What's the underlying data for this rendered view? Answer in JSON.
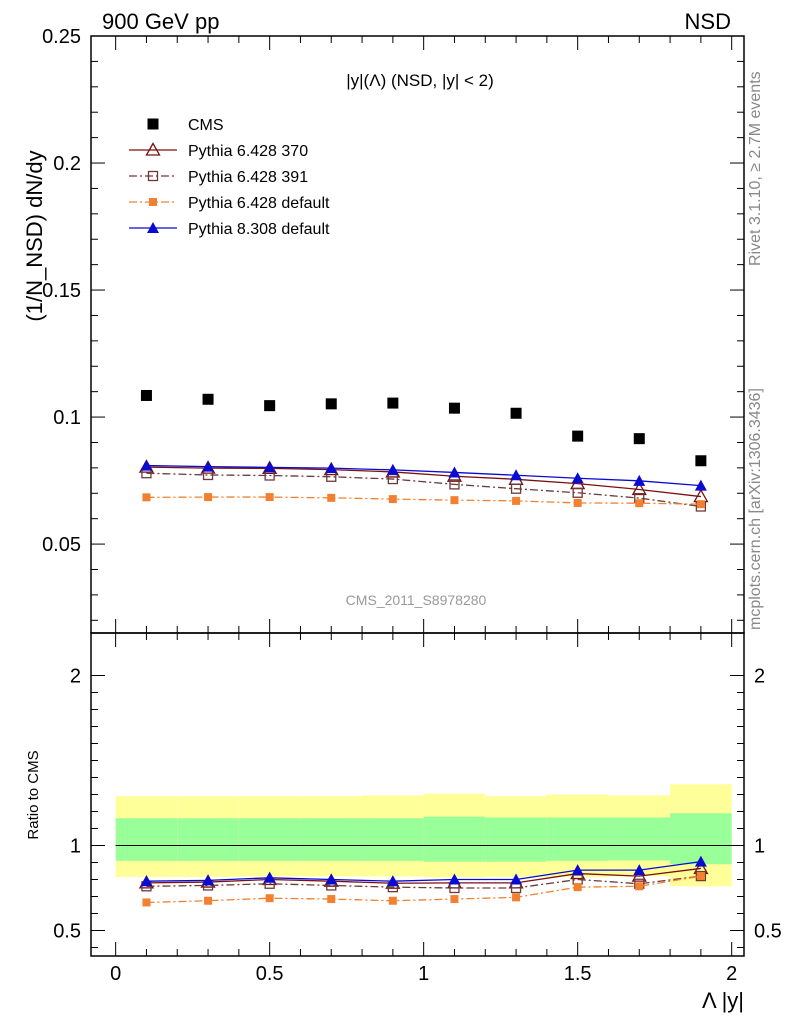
{
  "header": {
    "left": "900 GeV pp",
    "right": "NSD"
  },
  "side_labels": {
    "rivet": "Rivet 3.1.10, ≥ 2.7M events",
    "mcplots": "mcplots.cern.ch [arXiv:1306.3436]"
  },
  "watermark": "CMS_2011_S8978280",
  "colors": {
    "cms": "#000000",
    "p370": "#7a1010",
    "p391": "#6b3a3a",
    "p6def": "#f28030",
    "p8def": "#0a0ad0",
    "band_outer": "#ffff99",
    "band_inner": "#99ff99"
  },
  "chart_data": [
    {
      "type": "scatter",
      "title": "|y|(Λ) (NSD, |y| < 2)",
      "ylabel": "(1/N_NSD) dN/dy",
      "xlabel": "",
      "xlim": [
        -0.08,
        2.04
      ],
      "ylim": [
        0.015,
        0.25
      ],
      "yticks": [
        "0.05",
        "0.1",
        "0.15",
        "0.2",
        "0.25"
      ],
      "legend_position": "top-left",
      "x": [
        0.1,
        0.3,
        0.5,
        0.7,
        0.9,
        1.1,
        1.3,
        1.5,
        1.7,
        1.9
      ],
      "series": [
        {
          "name": "CMS",
          "color_key": "cms",
          "marker": "square",
          "line": "none",
          "values": [
            0.1085,
            0.107,
            0.1045,
            0.1052,
            0.1055,
            0.1035,
            0.1015,
            0.0925,
            0.0915,
            0.0828
          ]
        },
        {
          "name": "Pythia 6.428 370",
          "color_key": "p370",
          "marker": "open-triangle",
          "line": "solid",
          "values": [
            0.0803,
            0.0799,
            0.0798,
            0.0793,
            0.0784,
            0.0767,
            0.0755,
            0.0738,
            0.0715,
            0.0687
          ]
        },
        {
          "name": "Pythia 6.428 391",
          "color_key": "p391",
          "marker": "open-square",
          "line": "dashdot",
          "values": [
            0.0779,
            0.0772,
            0.077,
            0.0765,
            0.0756,
            0.0735,
            0.0718,
            0.0702,
            0.0681,
            0.0648
          ]
        },
        {
          "name": "Pythia 6.428 default",
          "color_key": "p6def",
          "marker": "small-square",
          "line": "dashdot",
          "values": [
            0.0684,
            0.0685,
            0.0685,
            0.0682,
            0.0677,
            0.0673,
            0.067,
            0.0662,
            0.0661,
            0.0657
          ]
        },
        {
          "name": "Pythia 8.308 default",
          "color_key": "p8def",
          "marker": "triangle",
          "line": "solid",
          "values": [
            0.0809,
            0.0805,
            0.0802,
            0.0799,
            0.0792,
            0.0782,
            0.0771,
            0.0759,
            0.0749,
            0.073
          ]
        }
      ]
    },
    {
      "type": "line",
      "ylabel": "Ratio to CMS",
      "xlabel": "Λ |y|",
      "xlim": [
        -0.08,
        2.04
      ],
      "ylim": [
        0.35,
        2.25
      ],
      "xticks": [
        "0",
        "0.5",
        "1",
        "1.5",
        "2"
      ],
      "yticks": [
        "0.5",
        "1",
        "2"
      ],
      "reference_line": 1,
      "bins": [
        [
          0.0,
          0.2
        ],
        [
          0.2,
          0.4
        ],
        [
          0.4,
          0.6
        ],
        [
          0.6,
          0.8
        ],
        [
          0.8,
          1.0
        ],
        [
          1.0,
          1.2
        ],
        [
          1.2,
          1.4
        ],
        [
          1.4,
          1.6
        ],
        [
          1.6,
          1.8
        ],
        [
          1.8,
          2.0
        ]
      ],
      "band_outer": {
        "low": [
          0.815,
          0.815,
          0.818,
          0.818,
          0.818,
          0.812,
          0.815,
          0.815,
          0.818,
          0.76
        ],
        "high": [
          1.29,
          1.29,
          1.29,
          1.29,
          1.295,
          1.305,
          1.29,
          1.3,
          1.295,
          1.36
        ]
      },
      "band_inner": {
        "low": [
          0.91,
          0.91,
          0.91,
          0.91,
          0.91,
          0.905,
          0.905,
          0.91,
          0.912,
          0.89
        ],
        "high": [
          1.16,
          1.16,
          1.16,
          1.16,
          1.16,
          1.17,
          1.165,
          1.165,
          1.165,
          1.19
        ]
      },
      "x": [
        0.1,
        0.3,
        0.5,
        0.7,
        0.9,
        1.1,
        1.3,
        1.5,
        1.7,
        1.9
      ],
      "series": [
        {
          "name": "Pythia 6.428 370",
          "color_key": "p370",
          "marker": "open-triangle",
          "line": "solid",
          "values": [
            0.78,
            0.785,
            0.8,
            0.79,
            0.778,
            0.78,
            0.78,
            0.835,
            0.82,
            0.865
          ]
        },
        {
          "name": "Pythia 6.428 391",
          "color_key": "p391",
          "marker": "open-square",
          "line": "dashdot",
          "values": [
            0.76,
            0.765,
            0.775,
            0.765,
            0.755,
            0.75,
            0.75,
            0.8,
            0.775,
            0.82
          ]
        },
        {
          "name": "Pythia 6.428 default",
          "color_key": "p6def",
          "marker": "small-square",
          "line": "dashdot",
          "values": [
            0.665,
            0.675,
            0.69,
            0.685,
            0.675,
            0.685,
            0.695,
            0.755,
            0.76,
            0.82
          ]
        },
        {
          "name": "Pythia 8.308 default",
          "color_key": "p8def",
          "marker": "triangle",
          "line": "solid",
          "values": [
            0.79,
            0.795,
            0.81,
            0.8,
            0.79,
            0.8,
            0.8,
            0.855,
            0.855,
            0.905
          ]
        }
      ]
    }
  ]
}
